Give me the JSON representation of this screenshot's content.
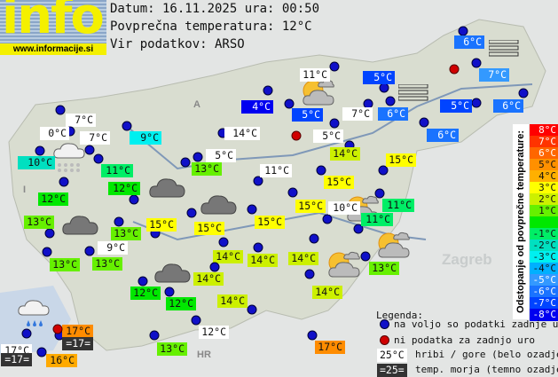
{
  "header": {
    "logo_text": "info",
    "logo_url": "www.informacije.si",
    "date_line": "Datum: 16.11.2025 ura: 00:50",
    "avg_line": "Povprečna temperatura: 12°C",
    "source_line": "Vir podatkov: ARSO"
  },
  "map_labels": {
    "zagreb": "Zagreb",
    "hr": "HR",
    "austria": "A",
    "italy": "I"
  },
  "colors": {
    "mountain": "#ffffff",
    "sea": "#333333",
    "station_dot": "#1010c8",
    "no_data_dot": "#d00000"
  },
  "stations": [
    {
      "t": "7°C",
      "bg": "#ffffff"
    },
    {
      "t": "0°C",
      "bg": "#ffffff"
    },
    {
      "t": "7°C",
      "bg": "#ffffff"
    },
    {
      "t": "9°C",
      "bg": "#00f0f0"
    },
    {
      "t": "10°C",
      "bg": "#00e0c0"
    },
    {
      "t": "11°C",
      "bg": "#00ee66"
    },
    {
      "t": "12°C",
      "bg": "#00e800"
    },
    {
      "t": "12°C",
      "bg": "#00e800"
    },
    {
      "t": "13°C",
      "bg": "#66f000"
    },
    {
      "t": "13°C",
      "bg": "#66f000"
    },
    {
      "t": "15°C",
      "bg": "#ffff00"
    },
    {
      "t": "15°C",
      "bg": "#ffff00"
    },
    {
      "t": "15°C",
      "bg": "#ffff00"
    },
    {
      "t": "14°C",
      "bg": "#ffffff"
    },
    {
      "t": "5°C",
      "bg": "#ffffff"
    },
    {
      "t": "13°C",
      "bg": "#66f000"
    },
    {
      "t": "4°C",
      "bg": "#0000f0"
    },
    {
      "t": "11°C",
      "bg": "#ffffff"
    },
    {
      "t": "5°C",
      "bg": "#0044ff"
    },
    {
      "t": "7°C",
      "bg": "#ffffff"
    },
    {
      "t": "6°C",
      "bg": "#1a73ff"
    },
    {
      "t": "5°C",
      "bg": "#0044ff"
    },
    {
      "t": "5°C",
      "bg": "#ffffff"
    },
    {
      "t": "14°C",
      "bg": "#ccf000"
    },
    {
      "t": "15°C",
      "bg": "#ffff00"
    },
    {
      "t": "11°C",
      "bg": "#ffffff"
    },
    {
      "t": "15°C",
      "bg": "#ffff00"
    },
    {
      "t": "15°C",
      "bg": "#ffff00"
    },
    {
      "t": "10°C",
      "bg": "#ffffff"
    },
    {
      "t": "11°C",
      "bg": "#00ee66"
    },
    {
      "t": "11°C",
      "bg": "#00ee66"
    },
    {
      "t": "6°C",
      "bg": "#1a73ff"
    },
    {
      "t": "7°C",
      "bg": "#3399ff"
    },
    {
      "t": "5°C",
      "bg": "#0044ff"
    },
    {
      "t": "6°C",
      "bg": "#1a73ff"
    },
    {
      "t": "6°C",
      "bg": "#1a73ff"
    },
    {
      "t": "9°C",
      "bg": "#ffffff"
    },
    {
      "t": "13°C",
      "bg": "#66f000"
    },
    {
      "t": "13°C",
      "bg": "#66f000"
    },
    {
      "t": "12°C",
      "bg": "#00e800"
    },
    {
      "t": "12°C",
      "bg": "#00e800"
    },
    {
      "t": "14°C",
      "bg": "#ccf000"
    },
    {
      "t": "14°C",
      "bg": "#ccf000"
    },
    {
      "t": "14°C",
      "bg": "#ccf000"
    },
    {
      "t": "14°C",
      "bg": "#ccf000"
    },
    {
      "t": "14°C",
      "bg": "#ccf000"
    },
    {
      "t": "14°C",
      "bg": "#ccf000"
    },
    {
      "t": "13°C",
      "bg": "#66f000"
    },
    {
      "t": "12°C",
      "bg": "#ffffff"
    },
    {
      "t": "13°C",
      "bg": "#66f000"
    },
    {
      "t": "17°C",
      "bg": "#ff8c00"
    },
    {
      "t": "17°C",
      "bg": "#ff8c00"
    },
    {
      "t": "17°C",
      "bg": "#ffffff"
    },
    {
      "t": "16°C",
      "bg": "#ffaa00"
    }
  ],
  "sea_temps": [
    {
      "t": "=17="
    },
    {
      "t": "=17="
    }
  ],
  "weather_icons": [
    "rain-snow-cloud",
    "cloud",
    "cloud",
    "cloud",
    "cloud",
    "rain-cloud",
    "sun-cloud",
    "sun-cloud",
    "sun-cloud",
    "sun-cloud",
    "fog",
    "fog"
  ],
  "scale": {
    "title": "Odstopanje od povprečne temperature:",
    "rows": [
      {
        "label": "8°C",
        "bg": "#ff0000",
        "fg": "#ffffff"
      },
      {
        "label": "7°C",
        "bg": "#ff3300",
        "fg": "#ffffff"
      },
      {
        "label": "6°C",
        "bg": "#ff6600",
        "fg": "#ffffff"
      },
      {
        "label": "5°C",
        "bg": "#ff9000",
        "fg": "#111111"
      },
      {
        "label": "4°C",
        "bg": "#ffb000",
        "fg": "#111111"
      },
      {
        "label": "3°C",
        "bg": "#ffff00",
        "fg": "#111111"
      },
      {
        "label": "2°C",
        "bg": "#ccf000",
        "fg": "#111111"
      },
      {
        "label": "1°C",
        "bg": "#66f000",
        "fg": "#111111"
      },
      {
        "label": "",
        "bg": "#00e800",
        "fg": "#111111"
      },
      {
        "label": "-1°C",
        "bg": "#00ee66",
        "fg": "#111111"
      },
      {
        "label": "-2°C",
        "bg": "#00e0c0",
        "fg": "#111111"
      },
      {
        "label": "-3°C",
        "bg": "#00f0f0",
        "fg": "#111111"
      },
      {
        "label": "-4°C",
        "bg": "#00b0ff",
        "fg": "#111111"
      },
      {
        "label": "-5°C",
        "bg": "#3399ff",
        "fg": "#ffffff"
      },
      {
        "label": "-6°C",
        "bg": "#1a73ff",
        "fg": "#ffffff"
      },
      {
        "label": "-7°C",
        "bg": "#0044ff",
        "fg": "#ffffff"
      },
      {
        "label": "-8°C",
        "bg": "#0000f0",
        "fg": "#ffffff"
      }
    ]
  },
  "legend": {
    "title": "Legenda:",
    "available": "na voljo so podatki zadnje ure",
    "no_data": "ni podatka za zadnjo uro",
    "mountain_sample": "25°C",
    "mountain_text": "hribi / gore (belo ozadje)",
    "sea_sample": "=25=",
    "sea_text": "temp. morja (temno ozadje)"
  }
}
